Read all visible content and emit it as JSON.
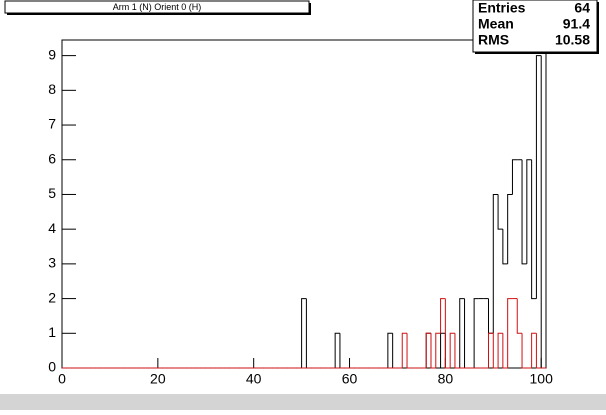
{
  "chart_data": {
    "type": "histogram",
    "title": "Arm 1 (N) Orient 0 (H)",
    "bins": [
      0,
      1,
      2,
      3,
      4,
      5,
      6,
      7,
      8,
      9,
      10,
      11,
      12,
      13,
      14,
      15,
      16,
      17,
      18,
      19,
      20,
      21,
      22,
      23,
      24,
      25,
      26,
      27,
      28,
      29,
      30,
      31,
      32,
      33,
      34,
      35,
      36,
      37,
      38,
      39,
      40,
      41,
      42,
      43,
      44,
      45,
      46,
      47,
      48,
      49,
      50,
      51,
      52,
      53,
      54,
      55,
      56,
      57,
      58,
      59,
      60,
      61,
      62,
      63,
      64,
      65,
      66,
      67,
      68,
      69,
      70,
      71,
      72,
      73,
      74,
      75,
      76,
      77,
      78,
      79,
      80,
      81,
      82,
      83,
      84,
      85,
      86,
      87,
      88,
      89,
      90,
      91,
      92,
      93,
      94,
      95,
      96,
      97,
      98,
      99,
      100,
      101
    ],
    "series": [
      {
        "color": "#000000",
        "values": [
          0,
          0,
          0,
          0,
          0,
          0,
          0,
          0,
          0,
          0,
          0,
          0,
          0,
          0,
          0,
          0,
          0,
          0,
          0,
          0,
          0,
          0,
          0,
          0,
          0,
          0,
          0,
          0,
          0,
          0,
          0,
          0,
          0,
          0,
          0,
          0,
          0,
          0,
          0,
          0,
          0,
          0,
          0,
          0,
          0,
          0,
          0,
          0,
          0,
          0,
          2,
          0,
          0,
          0,
          0,
          0,
          0,
          1,
          0,
          0,
          0,
          0,
          0,
          0,
          0,
          0,
          0,
          0,
          1,
          0,
          0,
          0,
          0,
          0,
          0,
          0,
          1,
          0,
          0,
          1,
          0,
          0,
          0,
          2,
          0,
          0,
          2,
          2,
          2,
          1,
          5,
          4,
          3,
          5,
          6,
          6,
          3,
          6,
          2,
          9,
          0
        ]
      },
      {
        "color": "#d01010",
        "values": [
          0,
          0,
          0,
          0,
          0,
          0,
          0,
          0,
          0,
          0,
          0,
          0,
          0,
          0,
          0,
          0,
          0,
          0,
          0,
          0,
          0,
          0,
          0,
          0,
          0,
          0,
          0,
          0,
          0,
          0,
          0,
          0,
          0,
          0,
          0,
          0,
          0,
          0,
          0,
          0,
          0,
          0,
          0,
          0,
          0,
          0,
          0,
          0,
          0,
          0,
          0,
          0,
          0,
          0,
          0,
          0,
          0,
          0,
          0,
          0,
          0,
          0,
          0,
          0,
          0,
          0,
          0,
          0,
          0,
          0,
          0,
          1,
          0,
          0,
          0,
          0,
          1,
          0,
          1,
          2,
          0,
          1,
          0,
          0,
          0,
          0,
          0,
          0,
          0,
          1,
          0,
          1,
          0,
          2,
          2,
          1,
          0,
          0,
          1,
          0,
          0
        ]
      }
    ],
    "xlim": [
      0,
      101
    ],
    "ylim": [
      0,
      9.45
    ],
    "xticks": [
      0,
      20,
      40,
      60,
      80,
      100
    ],
    "yticks": [
      0,
      1,
      2,
      3,
      4,
      5,
      6,
      7,
      8,
      9
    ],
    "stats": {
      "labels": [
        "Entries",
        "Mean",
        "RMS"
      ],
      "values": [
        "64",
        "91.4",
        "10.58"
      ]
    }
  }
}
